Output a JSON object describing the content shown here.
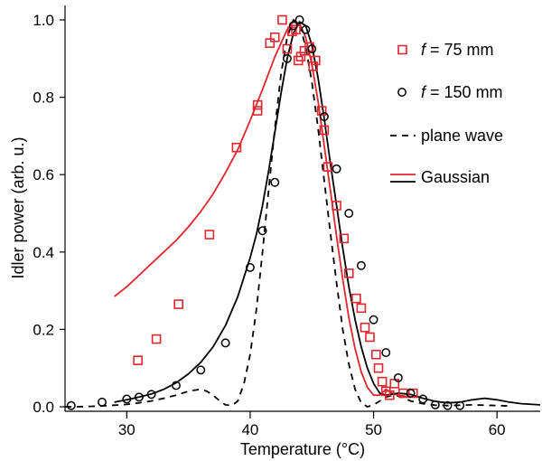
{
  "chart_data": {
    "type": "scatter",
    "xlabel": "Temperature (°C)",
    "ylabel": "Idler power (arb. u.)",
    "xlim": [
      25,
      63.5
    ],
    "ylim": [
      0,
      1.0
    ],
    "xticks": [
      30,
      40,
      50,
      60
    ],
    "yticks": [
      0.0,
      0.2,
      0.4,
      0.6,
      0.8,
      1.0
    ],
    "xtick_labels": [
      "30",
      "40",
      "50",
      "60"
    ],
    "ytick_labels": [
      "0.0",
      "0.2",
      "0.4",
      "0.6",
      "0.8",
      "1.0"
    ],
    "legend_position": "top-right",
    "series": [
      {
        "name": "f = 75 mm",
        "legend_italic": "f",
        "legend_rest": " = 75 mm",
        "kind": "markers",
        "marker": "square",
        "color": "#e0262e",
        "x": [
          30.9,
          32.4,
          34.2,
          36.7,
          38.9,
          40.6,
          40.6,
          41.6,
          42.0,
          42.6,
          43.0,
          43.4,
          43.7,
          43.9,
          44.1,
          44.4,
          44.8,
          45.1,
          45.3,
          45.8,
          46.0,
          46.3,
          47.0,
          47.6,
          48.0,
          48.6,
          49.0,
          49.3,
          49.7,
          50.2,
          50.4,
          50.7,
          51.0,
          51.3,
          51.7,
          52.4,
          53.2
        ],
        "y": [
          0.12,
          0.175,
          0.265,
          0.445,
          0.67,
          0.765,
          0.78,
          0.94,
          0.955,
          1.0,
          0.925,
          0.97,
          0.975,
          0.895,
          0.905,
          0.92,
          0.93,
          0.88,
          0.895,
          0.765,
          0.715,
          0.62,
          0.52,
          0.435,
          0.345,
          0.28,
          0.255,
          0.205,
          0.18,
          0.135,
          0.1,
          0.065,
          0.04,
          0.03,
          0.06,
          0.035,
          0.035
        ]
      },
      {
        "name": "f = 150 mm",
        "legend_italic": "f",
        "legend_rest": " = 150 mm",
        "kind": "markers",
        "marker": "circle",
        "color": "#000000",
        "x": [
          25.5,
          28.0,
          30.0,
          31.0,
          32.0,
          34.0,
          36.0,
          38.0,
          40.0,
          41.0,
          42.0,
          43.0,
          43.5,
          44.0,
          44.5,
          45.0,
          46.0,
          47.0,
          48.0,
          49.0,
          50.0,
          51.0,
          52.0,
          53.0,
          54.0,
          55.0,
          56.0,
          57.0
        ],
        "y": [
          0.003,
          0.012,
          0.02,
          0.025,
          0.032,
          0.055,
          0.095,
          0.165,
          0.36,
          0.455,
          0.58,
          0.9,
          0.985,
          1.0,
          0.975,
          0.925,
          0.75,
          0.615,
          0.5,
          0.365,
          0.225,
          0.14,
          0.075,
          0.035,
          0.02,
          0.005,
          0.003,
          0.003
        ]
      },
      {
        "name": "plane wave",
        "kind": "line",
        "dash": "7 6",
        "color": "#000000",
        "x": [
          25.0,
          26.0,
          27.0,
          28.0,
          29.0,
          30.0,
          31.0,
          32.0,
          33.0,
          34.0,
          35.0,
          35.5,
          36.0,
          36.5,
          37.0,
          37.5,
          38.0,
          38.5,
          39.0,
          39.5,
          40.0,
          40.5,
          41.0,
          41.5,
          42.0,
          42.5,
          43.0,
          43.5,
          44.0,
          44.5,
          45.0,
          45.5,
          46.0,
          46.5,
          47.0,
          47.5,
          48.0,
          48.5,
          49.0,
          49.5,
          50.0,
          50.5,
          51.0,
          51.5,
          52.0,
          52.5,
          53.0,
          54.0,
          55.0,
          56.0,
          57.0,
          58.0,
          59.0,
          60.0,
          61.0
        ],
        "y": [
          0.0,
          0.0,
          0.001,
          0.002,
          0.004,
          0.006,
          0.01,
          0.015,
          0.022,
          0.03,
          0.04,
          0.043,
          0.045,
          0.04,
          0.03,
          0.016,
          0.005,
          0.003,
          0.015,
          0.06,
          0.135,
          0.25,
          0.4,
          0.56,
          0.72,
          0.86,
          0.955,
          1.0,
          0.99,
          0.93,
          0.84,
          0.72,
          0.585,
          0.45,
          0.32,
          0.2,
          0.11,
          0.045,
          0.01,
          0.0,
          0.005,
          0.015,
          0.025,
          0.03,
          0.028,
          0.022,
          0.015,
          0.008,
          0.004,
          0.003,
          0.004,
          0.005,
          0.004,
          0.003,
          0.002
        ]
      },
      {
        "name": "Gaussian (f = 75 mm)",
        "kind": "line",
        "color": "#e0262e",
        "x": [
          29.0,
          30.0,
          31.0,
          32.0,
          33.0,
          34.0,
          35.0,
          36.0,
          37.0,
          38.0,
          39.0,
          40.0,
          41.0,
          42.0,
          43.0,
          43.5,
          44.0,
          44.5,
          45.0,
          45.5,
          46.0,
          46.5,
          47.0,
          47.5,
          48.0,
          48.5,
          49.0,
          49.5,
          50.0,
          50.5,
          51.0,
          51.5,
          52.0,
          53.0
        ],
        "y": [
          0.285,
          0.31,
          0.34,
          0.37,
          0.4,
          0.43,
          0.465,
          0.505,
          0.55,
          0.605,
          0.665,
          0.74,
          0.82,
          0.905,
          0.975,
          0.995,
          0.99,
          0.955,
          0.885,
          0.79,
          0.675,
          0.56,
          0.44,
          0.33,
          0.23,
          0.15,
          0.09,
          0.05,
          0.03,
          0.03,
          0.045,
          0.035,
          0.03,
          0.025
        ]
      },
      {
        "name": "Gaussian (f = 150 mm)",
        "kind": "line",
        "color": "#000000",
        "x": [
          29.0,
          30.0,
          31.0,
          32.0,
          33.0,
          34.0,
          35.0,
          36.0,
          37.0,
          38.0,
          39.0,
          40.0,
          40.5,
          41.0,
          41.5,
          42.0,
          42.5,
          43.0,
          43.5,
          44.0,
          44.5,
          45.0,
          45.5,
          46.0,
          46.5,
          47.0,
          47.5,
          48.0,
          48.5,
          49.0,
          49.5,
          50.0,
          50.5,
          51.0,
          52.0,
          53.0,
          54.0,
          55.0,
          56.0,
          57.0,
          58.0,
          59.0,
          60.0,
          61.0,
          62.0,
          63.5
        ],
        "y": [
          0.012,
          0.018,
          0.025,
          0.033,
          0.045,
          0.062,
          0.085,
          0.115,
          0.155,
          0.21,
          0.285,
          0.385,
          0.445,
          0.52,
          0.61,
          0.71,
          0.81,
          0.9,
          0.965,
          0.995,
          0.985,
          0.935,
          0.85,
          0.745,
          0.63,
          0.52,
          0.41,
          0.31,
          0.225,
          0.155,
          0.1,
          0.06,
          0.035,
          0.03,
          0.035,
          0.032,
          0.022,
          0.014,
          0.01,
          0.012,
          0.018,
          0.022,
          0.018,
          0.012,
          0.008,
          0.005
        ]
      }
    ],
    "legend": [
      {
        "label_italic": "f",
        "label_rest": " = 75 mm",
        "symbol": "square",
        "color": "#e0262e"
      },
      {
        "label_italic": "f",
        "label_rest": " = 150 mm",
        "symbol": "circle",
        "color": "#000000"
      },
      {
        "label": "plane wave",
        "symbol": "dashed-line",
        "color": "#000000"
      },
      {
        "label": "Gaussian",
        "symbol": "red-black-lines",
        "colors": [
          "#e0262e",
          "#000000"
        ]
      }
    ]
  }
}
